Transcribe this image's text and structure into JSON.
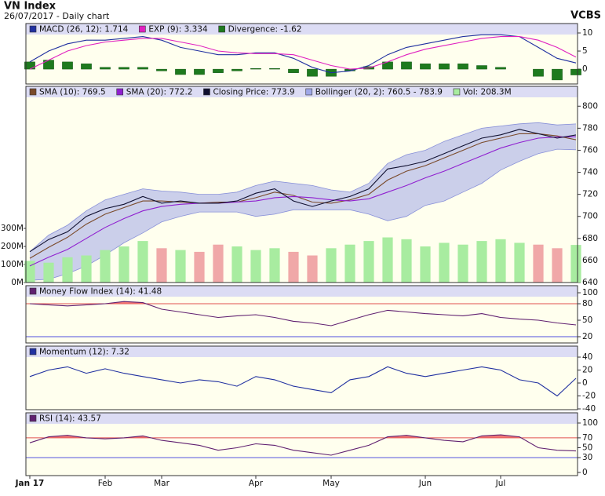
{
  "header": {
    "title": "VN Index",
    "subtitle": "26/07/2017 - Daily chart",
    "brand": "VCBS"
  },
  "chart_data": [
    {
      "type": "combo",
      "ylim": [
        -4.1,
        12.6
      ],
      "yticks": [
        0,
        5,
        10
      ],
      "series": [
        {
          "name": "MACD (26, 12): 1.714",
          "color": "#2030a0",
          "style": "line",
          "values": [
            2,
            5,
            7,
            8,
            8,
            8.5,
            9,
            8,
            6,
            5,
            4,
            4,
            4.5,
            4.5,
            3,
            0.5,
            -1,
            -0.5,
            1,
            4,
            6,
            7,
            8,
            9,
            9.5,
            9.5,
            9,
            6,
            3,
            1.714
          ]
        },
        {
          "name": "EXP (9): 3.334",
          "color": "#e020c0",
          "style": "line",
          "values": [
            0,
            2.5,
            5,
            6.5,
            7.5,
            8,
            8.5,
            8.5,
            7.5,
            6.5,
            5,
            4.5,
            4.3,
            4.3,
            4,
            2.5,
            1,
            0,
            0.3,
            2,
            4,
            5.5,
            6.5,
            7.5,
            8.5,
            9,
            9,
            8,
            6,
            3.334
          ]
        },
        {
          "name": "Divergence: -1.62",
          "color": "#1e7a1e",
          "style": "bar",
          "values": [
            2,
            2.5,
            2,
            1.5,
            0.5,
            0.5,
            0.5,
            -0.5,
            -1.5,
            -1.5,
            -1,
            -0.5,
            0.2,
            0.2,
            -1,
            -2,
            -2,
            -0.5,
            0.7,
            2,
            2,
            1.5,
            1.5,
            1.5,
            1,
            0.5,
            0,
            -2,
            -3,
            -1.62
          ]
        }
      ]
    },
    {
      "type": "combo",
      "ylim": [
        640,
        818
      ],
      "yticks": [
        640,
        660,
        680,
        700,
        720,
        740,
        760,
        780,
        800
      ],
      "y2lim": [
        0,
        1087
      ],
      "y2ticks": [
        {
          "value": 0,
          "label": "0M"
        },
        {
          "value": 100,
          "label": "100M"
        },
        {
          "value": 200,
          "label": "200M"
        },
        {
          "value": 300,
          "label": "300M"
        }
      ],
      "series": [
        {
          "name": "SMA (10): 769.5",
          "color": "#7a4a2a",
          "style": "line",
          "values": [
            662,
            672,
            681,
            693,
            702,
            708,
            714,
            714,
            713,
            712,
            713,
            713,
            717,
            722,
            719,
            713,
            712,
            715,
            720,
            733,
            741,
            746,
            753,
            760,
            767,
            771,
            775,
            775,
            773,
            769.5
          ]
        },
        {
          "name": "SMA (20): 772.2",
          "color": "#9020d0",
          "style": "line",
          "values": [
            655,
            663,
            670,
            680,
            690,
            698,
            705,
            709,
            711,
            712,
            712,
            713,
            714,
            717,
            718,
            717,
            715,
            714,
            716,
            722,
            728,
            735,
            741,
            748,
            755,
            762,
            767,
            771,
            772,
            772.2
          ]
        },
        {
          "name": "Closing Price: 773.9",
          "color": "#101030",
          "style": "line",
          "values": [
            668,
            679,
            686,
            700,
            707,
            711,
            718,
            712,
            714,
            712,
            712,
            714,
            721,
            725,
            714,
            709,
            714,
            718,
            725,
            743,
            746,
            750,
            757,
            764,
            771,
            774,
            779,
            775,
            771,
            773.9
          ]
        },
        {
          "name": "Bollinger (20, 2): 760.5 - 783.9",
          "color": "#a0a8e8",
          "style": "band",
          "upper": [
            668,
            683,
            692,
            705,
            715,
            720,
            725,
            723,
            722,
            720,
            720,
            722,
            728,
            732,
            730,
            728,
            724,
            722,
            730,
            748,
            756,
            760,
            768,
            774,
            780,
            782,
            784,
            785,
            783,
            783.9
          ],
          "lower": [
            642,
            643,
            648,
            655,
            665,
            676,
            685,
            695,
            700,
            704,
            704,
            704,
            700,
            702,
            706,
            706,
            706,
            706,
            702,
            696,
            700,
            710,
            714,
            722,
            730,
            742,
            750,
            757,
            761,
            760.5
          ]
        },
        {
          "name": "Vol: 208.3M",
          "color": "#a8eca0",
          "style": "volume",
          "axis": "y2",
          "values": [
            120,
            110,
            140,
            150,
            180,
            200,
            230,
            190,
            180,
            170,
            210,
            200,
            180,
            190,
            170,
            150,
            190,
            210,
            230,
            250,
            240,
            200,
            220,
            210,
            230,
            240,
            220,
            210,
            190,
            208.3
          ],
          "colors": [
            "#a8eca0",
            "#a8eca0",
            "#a8eca0",
            "#a8eca0",
            "#a8eca0",
            "#a8eca0",
            "#a8eca0",
            "#f0a8a8",
            "#a8eca0",
            "#f0a8a8",
            "#f0a8a8",
            "#a8eca0",
            "#a8eca0",
            "#a8eca0",
            "#f0a8a8",
            "#f0a8a8",
            "#a8eca0",
            "#a8eca0",
            "#a8eca0",
            "#a8eca0",
            "#a8eca0",
            "#a8eca0",
            "#a8eca0",
            "#a8eca0",
            "#a8eca0",
            "#a8eca0",
            "#a8eca0",
            "#f0a8a8",
            "#f0a8a8",
            "#a8eca0"
          ]
        }
      ]
    },
    {
      "type": "line",
      "ylim": [
        8.6,
        112.9
      ],
      "yticks": [
        20,
        50,
        80,
        100
      ],
      "ref_lines": [
        {
          "value": 80,
          "color": "#e05050",
          "shade": "#f06060"
        },
        {
          "value": 20,
          "color": "#5050e0"
        }
      ],
      "series": [
        {
          "name": "Money Flow Index (14): 41.48",
          "color": "#602070",
          "style": "line",
          "values": [
            80,
            78,
            76,
            78,
            80,
            84,
            82,
            70,
            65,
            60,
            55,
            58,
            60,
            55,
            48,
            45,
            40,
            50,
            60,
            68,
            65,
            62,
            60,
            58,
            62,
            55,
            52,
            50,
            45,
            41.48
          ]
        }
      ]
    },
    {
      "type": "line",
      "ylim": [
        -41.2,
        57
      ],
      "yticks": [
        -40,
        -20,
        0,
        20,
        40
      ],
      "series": [
        {
          "name": "Momentum (12): 7.32",
          "color": "#2030a0",
          "style": "line",
          "values": [
            10,
            20,
            25,
            15,
            22,
            15,
            10,
            5,
            0,
            5,
            2,
            -5,
            10,
            5,
            -5,
            -10,
            -15,
            5,
            10,
            25,
            15,
            10,
            15,
            20,
            25,
            20,
            5,
            0,
            -20,
            7.32
          ]
        }
      ]
    },
    {
      "type": "line",
      "ylim": [
        -6.3,
        120.6
      ],
      "yticks": [
        0,
        30,
        50,
        70,
        100
      ],
      "ref_lines": [
        {
          "value": 70,
          "color": "#e05050",
          "shade": "#f06060"
        },
        {
          "value": 30,
          "color": "#5050e0"
        }
      ],
      "series": [
        {
          "name": "RSI (14): 43.57",
          "color": "#602070",
          "style": "line",
          "values": [
            60,
            72,
            75,
            70,
            68,
            70,
            74,
            65,
            60,
            55,
            45,
            50,
            58,
            55,
            45,
            40,
            35,
            45,
            55,
            72,
            75,
            70,
            65,
            62,
            74,
            76,
            72,
            50,
            45,
            43.57
          ]
        }
      ],
      "categories": [
        "Jan 17",
        null,
        null,
        null,
        "Feb",
        null,
        null,
        "Mar",
        null,
        null,
        null,
        null,
        "Apr",
        null,
        null,
        null,
        "May",
        null,
        null,
        null,
        null,
        "Jun",
        null,
        null,
        null,
        "Jul",
        null,
        null,
        null,
        null
      ]
    }
  ]
}
